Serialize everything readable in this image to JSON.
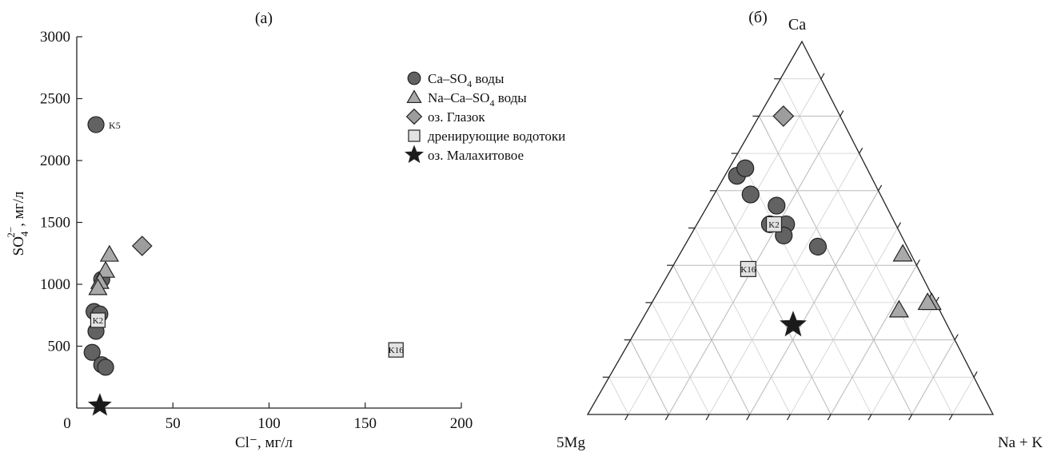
{
  "colors": {
    "ca_so4": "#626262",
    "na_ca_so4": "#a9a9a9",
    "glazok": "#9d9d9d",
    "drain": "#e2e2e2",
    "malakhit": "#1a1a1a"
  },
  "legend": [
    {
      "key": "ca_so4",
      "marker": "circle",
      "prefix": "Ca–SO",
      "sub": "4",
      "suffix": " воды"
    },
    {
      "key": "na_ca_so4",
      "marker": "triangle",
      "prefix": "Na–Ca–SO",
      "sub": "4",
      "suffix": " воды"
    },
    {
      "key": "glazok",
      "marker": "diamond",
      "prefix": "оз. Глазок",
      "sub": "",
      "suffix": ""
    },
    {
      "key": "drain",
      "marker": "square",
      "prefix": "дренирующие водотоки",
      "sub": "",
      "suffix": ""
    },
    {
      "key": "malakhit",
      "marker": "star",
      "prefix": "оз. Малахитовое",
      "sub": "",
      "suffix": ""
    }
  ],
  "chart_data": [
    {
      "type": "scatter",
      "title": "(а)",
      "xlabel": "Cl⁻, мг/л",
      "ylabel_main": "SO",
      "ylabel_sub": "4",
      "ylabel_sup": "2−",
      "ylabel_rest": ", мг/л",
      "xlim": [
        0,
        200
      ],
      "ylim": [
        0,
        3000
      ],
      "xticks": [
        0,
        50,
        100,
        150,
        200
      ],
      "yticks": [
        500,
        1000,
        1500,
        2000,
        2500,
        3000
      ],
      "grid": false,
      "legend_position": "top-right",
      "series": [
        {
          "key": "ca_so4",
          "marker": "circle",
          "points": [
            [
              10,
              2290,
              "K5"
            ],
            [
              13,
              1040,
              ""
            ],
            [
              9,
              780,
              ""
            ],
            [
              12,
              760,
              ""
            ],
            [
              10,
              620,
              ""
            ],
            [
              8,
              450,
              ""
            ],
            [
              13,
              350,
              ""
            ],
            [
              15,
              330,
              ""
            ]
          ]
        },
        {
          "key": "na_ca_so4",
          "marker": "triangle",
          "points": [
            [
              17,
              1240,
              ""
            ],
            [
              15,
              1110,
              ""
            ],
            [
              12,
              1020,
              ""
            ],
            [
              11,
              970,
              ""
            ]
          ]
        },
        {
          "key": "glazok",
          "marker": "diamond",
          "points": [
            [
              34,
              1310,
              ""
            ]
          ]
        },
        {
          "key": "drain",
          "marker": "square",
          "points": [
            [
              11,
              710,
              "K2"
            ],
            [
              166,
              470,
              "K16"
            ]
          ]
        },
        {
          "key": "malakhit",
          "marker": "star",
          "points": [
            [
              12,
              20,
              ""
            ]
          ]
        }
      ]
    },
    {
      "type": "scatter",
      "subtype": "ternary",
      "title": "(б)",
      "apex_top": "Ca",
      "apex_left": "5Mg",
      "apex_right": "Na + K",
      "grid": true,
      "series": [
        {
          "key": "ca_so4",
          "marker": "circle",
          "points": [
            [
              0.64,
              0.33,
              ""
            ],
            [
              0.66,
              0.3,
              ""
            ],
            [
              0.59,
              0.32,
              ""
            ],
            [
              0.56,
              0.27,
              ""
            ],
            [
              0.51,
              0.27,
              ""
            ],
            [
              0.48,
              0.29,
              ""
            ],
            [
              0.51,
              0.31,
              ""
            ],
            [
              0.45,
              0.22,
              ""
            ]
          ]
        },
        {
          "key": "na_ca_so4",
          "marker": "triangle",
          "points": [
            [
              0.43,
              0.02,
              ""
            ],
            [
              0.3,
              0.01,
              ""
            ],
            [
              0.3,
              0.02,
              ""
            ],
            [
              0.28,
              0.1,
              ""
            ]
          ]
        },
        {
          "key": "glazok",
          "marker": "diamond",
          "points": [
            [
              0.8,
              0.14,
              ""
            ]
          ]
        },
        {
          "key": "drain",
          "marker": "square",
          "points": [
            [
              0.51,
              0.3,
              "K2"
            ],
            [
              0.39,
              0.42,
              "K16"
            ]
          ]
        },
        {
          "key": "malakhit",
          "marker": "star",
          "points": [
            [
              0.24,
              0.38,
              ""
            ]
          ]
        }
      ]
    }
  ]
}
